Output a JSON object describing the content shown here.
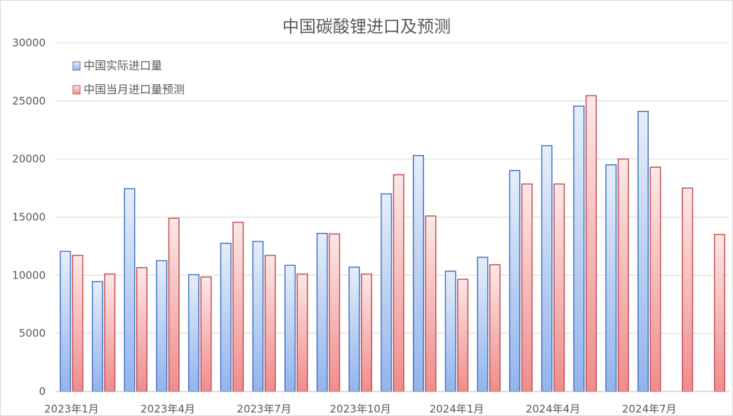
{
  "chart_data": {
    "type": "bar",
    "title": "中国碳酸锂进口及预测",
    "xlabel": "",
    "ylabel": "",
    "ylim": [
      0,
      30000
    ],
    "yticks": [
      0,
      5000,
      10000,
      15000,
      20000,
      25000,
      30000
    ],
    "grid": true,
    "legend_position": "top-left",
    "categories": [
      "2023年1月",
      "2023年2月",
      "2023年3月",
      "2023年4月",
      "2023年5月",
      "2023年6月",
      "2023年7月",
      "2023年8月",
      "2023年9月",
      "2023年10月",
      "2023年11月",
      "2023年12月",
      "2024年1月",
      "2024年2月",
      "2024年3月",
      "2024年4月",
      "2024年5月",
      "2024年6月",
      "2024年7月",
      "2024年8月",
      "2024年9月"
    ],
    "x_tick_labels": [
      {
        "index": 0,
        "label": "2023年1月"
      },
      {
        "index": 3,
        "label": "2023年4月"
      },
      {
        "index": 6,
        "label": "2023年7月"
      },
      {
        "index": 9,
        "label": "2023年10月"
      },
      {
        "index": 12,
        "label": "2024年1月"
      },
      {
        "index": 15,
        "label": "2024年4月"
      },
      {
        "index": 18,
        "label": "2024年7月"
      }
    ],
    "series": [
      {
        "name": "中国实际进口量",
        "color": "#4472c4",
        "fill_top": "#e6eefa",
        "fill_bottom": "#92b4ec",
        "values": [
          12050,
          9450,
          17450,
          11250,
          10050,
          12750,
          12900,
          10850,
          13600,
          10700,
          17000,
          20300,
          10350,
          11550,
          19000,
          21150,
          24550,
          19500,
          24100,
          null,
          null
        ]
      },
      {
        "name": "中国当月进口量预测",
        "color": "#c0504d",
        "fill_top": "#fce8e8",
        "fill_bottom": "#f08c8c",
        "values": [
          11700,
          10100,
          10650,
          14900,
          9850,
          14550,
          11700,
          10100,
          13550,
          10100,
          18650,
          15100,
          9650,
          10900,
          17850,
          17850,
          25450,
          20000,
          19300,
          17500,
          13500
        ]
      }
    ]
  }
}
